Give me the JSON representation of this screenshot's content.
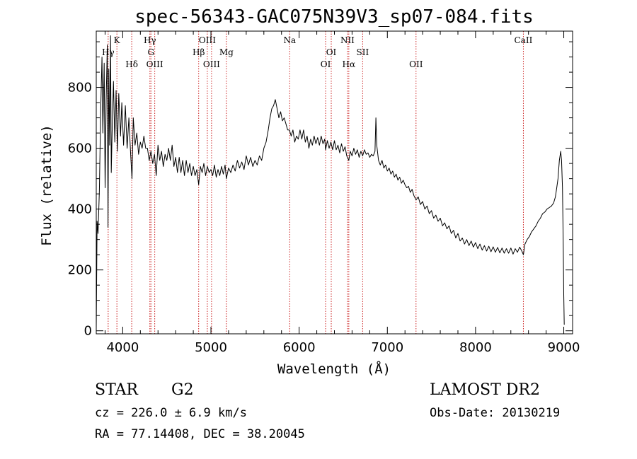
{
  "chart_data": {
    "type": "line",
    "title": "spec-56343-GAC075N39V3_sp07-084.fits",
    "xlabel": "Wavelength (Å)",
    "ylabel": "Flux (relative)",
    "xlim": [
      3700,
      9100
    ],
    "ylim": [
      -10,
      985
    ],
    "x_ticks": [
      4000,
      5000,
      6000,
      7000,
      8000,
      9000
    ],
    "y_ticks": [
      0,
      200,
      400,
      600,
      800
    ],
    "x_minor_step": 200,
    "y_minor_step": 50,
    "grid": false,
    "spectrum_color": "#000000",
    "line_marker_color": "#cc2222",
    "emission_lines": [
      {
        "label": "Hγ",
        "x": 3835,
        "row": 2
      },
      {
        "label": "K",
        "x": 3934,
        "row": 1
      },
      {
        "label": "Hδ",
        "x": 4102,
        "row": 3
      },
      {
        "label": "Hγ",
        "x": 4308,
        "row": 1
      },
      {
        "label": "G",
        "x": 4320,
        "row": 2
      },
      {
        "label": "OIII",
        "x": 4363,
        "row": 3
      },
      {
        "label": "Hβ",
        "x": 4861,
        "row": 2
      },
      {
        "label": "OIII",
        "x": 4959,
        "row": 1
      },
      {
        "label": "OIII",
        "x": 5007,
        "row": 3
      },
      {
        "label": "Mg",
        "x": 5175,
        "row": 2
      },
      {
        "label": "Na",
        "x": 5893,
        "row": 1
      },
      {
        "label": "OI",
        "x": 6300,
        "row": 3
      },
      {
        "label": "OI",
        "x": 6364,
        "row": 2
      },
      {
        "label": "NII",
        "x": 6548,
        "row": 1
      },
      {
        "label": "Hα",
        "x": 6563,
        "row": 3
      },
      {
        "label": "SII",
        "x": 6720,
        "row": 2
      },
      {
        "label": "OII",
        "x": 7325,
        "row": 3
      },
      {
        "label": "CaII",
        "x": 8542,
        "row": 1
      }
    ],
    "series": [
      {
        "spectrum_points": [
          [
            3700,
            5
          ],
          [
            3710,
            360
          ],
          [
            3720,
            320
          ],
          [
            3735,
            460
          ],
          [
            3750,
            720
          ],
          [
            3765,
            900
          ],
          [
            3775,
            650
          ],
          [
            3790,
            880
          ],
          [
            3800,
            470
          ],
          [
            3812,
            760
          ],
          [
            3825,
            940
          ],
          [
            3833,
            340
          ],
          [
            3842,
            860
          ],
          [
            3852,
            610
          ],
          [
            3862,
            970
          ],
          [
            3870,
            520
          ],
          [
            3880,
            650
          ],
          [
            3895,
            820
          ],
          [
            3910,
            620
          ],
          [
            3925,
            790
          ],
          [
            3940,
            590
          ],
          [
            3955,
            780
          ],
          [
            3975,
            640
          ],
          [
            3990,
            750
          ],
          [
            4010,
            610
          ],
          [
            4030,
            740
          ],
          [
            4050,
            600
          ],
          [
            4070,
            700
          ],
          [
            4090,
            580
          ],
          [
            4105,
            500
          ],
          [
            4120,
            700
          ],
          [
            4140,
            610
          ],
          [
            4160,
            650
          ],
          [
            4180,
            580
          ],
          [
            4200,
            620
          ],
          [
            4220,
            600
          ],
          [
            4240,
            640
          ],
          [
            4260,
            600
          ],
          [
            4280,
            600
          ],
          [
            4300,
            560
          ],
          [
            4320,
            590
          ],
          [
            4340,
            550
          ],
          [
            4360,
            580
          ],
          [
            4380,
            510
          ],
          [
            4400,
            610
          ],
          [
            4420,
            560
          ],
          [
            4440,
            590
          ],
          [
            4460,
            540
          ],
          [
            4480,
            580
          ],
          [
            4500,
            560
          ],
          [
            4520,
            600
          ],
          [
            4540,
            560
          ],
          [
            4560,
            610
          ],
          [
            4580,
            540
          ],
          [
            4600,
            570
          ],
          [
            4620,
            520
          ],
          [
            4640,
            570
          ],
          [
            4660,
            520
          ],
          [
            4680,
            560
          ],
          [
            4700,
            510
          ],
          [
            4720,
            560
          ],
          [
            4740,
            520
          ],
          [
            4760,
            550
          ],
          [
            4780,
            510
          ],
          [
            4800,
            540
          ],
          [
            4820,
            510
          ],
          [
            4840,
            530
          ],
          [
            4861,
            480
          ],
          [
            4880,
            540
          ],
          [
            4900,
            520
          ],
          [
            4920,
            550
          ],
          [
            4940,
            510
          ],
          [
            4960,
            540
          ],
          [
            4980,
            520
          ],
          [
            5000,
            530
          ],
          [
            5020,
            510
          ],
          [
            5040,
            545
          ],
          [
            5060,
            505
          ],
          [
            5080,
            530
          ],
          [
            5100,
            510
          ],
          [
            5120,
            540
          ],
          [
            5140,
            515
          ],
          [
            5160,
            545
          ],
          [
            5175,
            500
          ],
          [
            5200,
            535
          ],
          [
            5225,
            520
          ],
          [
            5250,
            545
          ],
          [
            5275,
            525
          ],
          [
            5300,
            560
          ],
          [
            5325,
            535
          ],
          [
            5350,
            555
          ],
          [
            5375,
            530
          ],
          [
            5400,
            575
          ],
          [
            5425,
            545
          ],
          [
            5450,
            570
          ],
          [
            5475,
            540
          ],
          [
            5500,
            560
          ],
          [
            5525,
            545
          ],
          [
            5550,
            575
          ],
          [
            5575,
            560
          ],
          [
            5600,
            600
          ],
          [
            5625,
            620
          ],
          [
            5650,
            660
          ],
          [
            5670,
            700
          ],
          [
            5690,
            730
          ],
          [
            5710,
            740
          ],
          [
            5730,
            760
          ],
          [
            5750,
            730
          ],
          [
            5770,
            700
          ],
          [
            5790,
            720
          ],
          [
            5810,
            690
          ],
          [
            5830,
            700
          ],
          [
            5850,
            680
          ],
          [
            5870,
            660
          ],
          [
            5890,
            660
          ],
          [
            5910,
            640
          ],
          [
            5930,
            660
          ],
          [
            5950,
            620
          ],
          [
            5970,
            640
          ],
          [
            5990,
            630
          ],
          [
            6010,
            660
          ],
          [
            6030,
            630
          ],
          [
            6050,
            660
          ],
          [
            6070,
            620
          ],
          [
            6090,
            640
          ],
          [
            6110,
            600
          ],
          [
            6130,
            630
          ],
          [
            6150,
            610
          ],
          [
            6170,
            640
          ],
          [
            6190,
            615
          ],
          [
            6210,
            635
          ],
          [
            6230,
            610
          ],
          [
            6250,
            640
          ],
          [
            6270,
            615
          ],
          [
            6290,
            630
          ],
          [
            6300,
            595
          ],
          [
            6320,
            625
          ],
          [
            6340,
            600
          ],
          [
            6360,
            620
          ],
          [
            6380,
            595
          ],
          [
            6400,
            625
          ],
          [
            6420,
            595
          ],
          [
            6440,
            610
          ],
          [
            6460,
            585
          ],
          [
            6480,
            615
          ],
          [
            6500,
            590
          ],
          [
            6520,
            605
          ],
          [
            6540,
            575
          ],
          [
            6563,
            560
          ],
          [
            6580,
            590
          ],
          [
            6600,
            575
          ],
          [
            6620,
            600
          ],
          [
            6640,
            580
          ],
          [
            6660,
            595
          ],
          [
            6680,
            570
          ],
          [
            6700,
            590
          ],
          [
            6720,
            575
          ],
          [
            6740,
            595
          ],
          [
            6760,
            580
          ],
          [
            6780,
            585
          ],
          [
            6800,
            570
          ],
          [
            6820,
            580
          ],
          [
            6840,
            575
          ],
          [
            6860,
            590
          ],
          [
            6870,
            700
          ],
          [
            6880,
            610
          ],
          [
            6900,
            560
          ],
          [
            6920,
            545
          ],
          [
            6940,
            560
          ],
          [
            6960,
            535
          ],
          [
            6980,
            545
          ],
          [
            7000,
            525
          ],
          [
            7020,
            535
          ],
          [
            7040,
            515
          ],
          [
            7060,
            525
          ],
          [
            7080,
            505
          ],
          [
            7100,
            515
          ],
          [
            7120,
            495
          ],
          [
            7140,
            505
          ],
          [
            7160,
            485
          ],
          [
            7180,
            495
          ],
          [
            7200,
            480
          ],
          [
            7220,
            470
          ],
          [
            7240,
            475
          ],
          [
            7260,
            455
          ],
          [
            7280,
            465
          ],
          [
            7300,
            445
          ],
          [
            7325,
            430
          ],
          [
            7350,
            440
          ],
          [
            7375,
            415
          ],
          [
            7400,
            425
          ],
          [
            7425,
            400
          ],
          [
            7450,
            410
          ],
          [
            7475,
            385
          ],
          [
            7500,
            395
          ],
          [
            7525,
            370
          ],
          [
            7550,
            380
          ],
          [
            7575,
            360
          ],
          [
            7600,
            370
          ],
          [
            7625,
            345
          ],
          [
            7650,
            355
          ],
          [
            7675,
            335
          ],
          [
            7700,
            345
          ],
          [
            7725,
            320
          ],
          [
            7750,
            330
          ],
          [
            7775,
            305
          ],
          [
            7800,
            320
          ],
          [
            7825,
            295
          ],
          [
            7850,
            305
          ],
          [
            7875,
            285
          ],
          [
            7900,
            300
          ],
          [
            7925,
            280
          ],
          [
            7950,
            295
          ],
          [
            7975,
            275
          ],
          [
            8000,
            290
          ],
          [
            8025,
            270
          ],
          [
            8050,
            285
          ],
          [
            8075,
            265
          ],
          [
            8100,
            280
          ],
          [
            8125,
            262
          ],
          [
            8150,
            278
          ],
          [
            8175,
            260
          ],
          [
            8200,
            276
          ],
          [
            8225,
            258
          ],
          [
            8250,
            274
          ],
          [
            8275,
            256
          ],
          [
            8300,
            272
          ],
          [
            8325,
            255
          ],
          [
            8350,
            270
          ],
          [
            8375,
            255
          ],
          [
            8400,
            272
          ],
          [
            8425,
            252
          ],
          [
            8450,
            270
          ],
          [
            8475,
            258
          ],
          [
            8500,
            275
          ],
          [
            8525,
            262
          ],
          [
            8542,
            250
          ],
          [
            8560,
            285
          ],
          [
            8585,
            300
          ],
          [
            8610,
            310
          ],
          [
            8635,
            325
          ],
          [
            8660,
            335
          ],
          [
            8685,
            345
          ],
          [
            8710,
            360
          ],
          [
            8735,
            370
          ],
          [
            8760,
            385
          ],
          [
            8785,
            390
          ],
          [
            8810,
            400
          ],
          [
            8835,
            405
          ],
          [
            8860,
            410
          ],
          [
            8885,
            420
          ],
          [
            8905,
            440
          ],
          [
            8920,
            470
          ],
          [
            8935,
            500
          ],
          [
            8950,
            560
          ],
          [
            8965,
            590
          ],
          [
            8975,
            560
          ],
          [
            8985,
            470
          ],
          [
            8993,
            300
          ],
          [
            9000,
            120
          ],
          [
            9005,
            20
          ]
        ]
      }
    ]
  },
  "info": {
    "obj_class": "STAR",
    "subclass": "G2",
    "survey": "LAMOST DR2",
    "cz_line": "cz = 226.0 ± 6.9 km/s",
    "obs_date_line": "Obs-Date: 20130219",
    "coord_line": "RA =  77.14408, DEC =  38.20045"
  }
}
